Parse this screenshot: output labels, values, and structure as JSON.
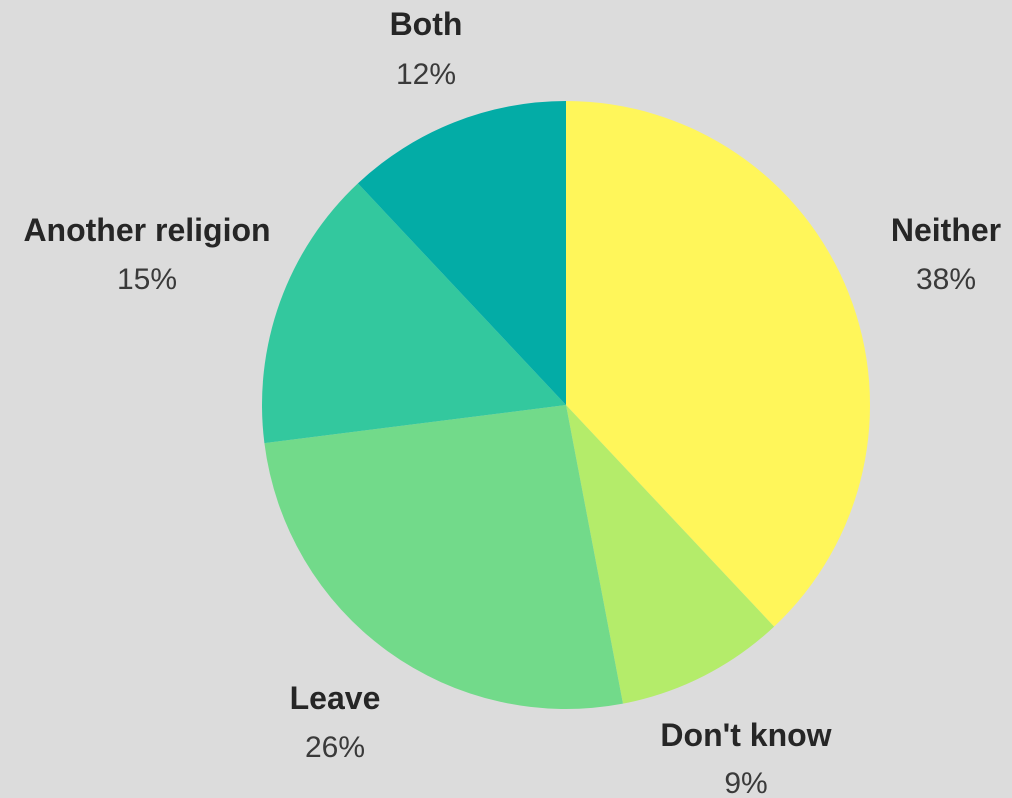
{
  "chart_data": {
    "type": "pie",
    "title": "",
    "start_angle_deg": 0,
    "direction": "clockwise",
    "slices": [
      {
        "label": "Neither",
        "value": 38,
        "value_label": "38%",
        "color": "#fff65a"
      },
      {
        "label": "Don't know",
        "value": 9,
        "value_label": "9%",
        "color": "#b4ec6a"
      },
      {
        "label": "Leave",
        "value": 26,
        "value_label": "26%",
        "color": "#72da8a"
      },
      {
        "label": "Another religion",
        "value": 15,
        "value_label": "15%",
        "color": "#33c89e"
      },
      {
        "label": "Both",
        "value": 12,
        "value_label": "12%",
        "color": "#03aca6"
      }
    ],
    "background": "#dcdcdc"
  }
}
